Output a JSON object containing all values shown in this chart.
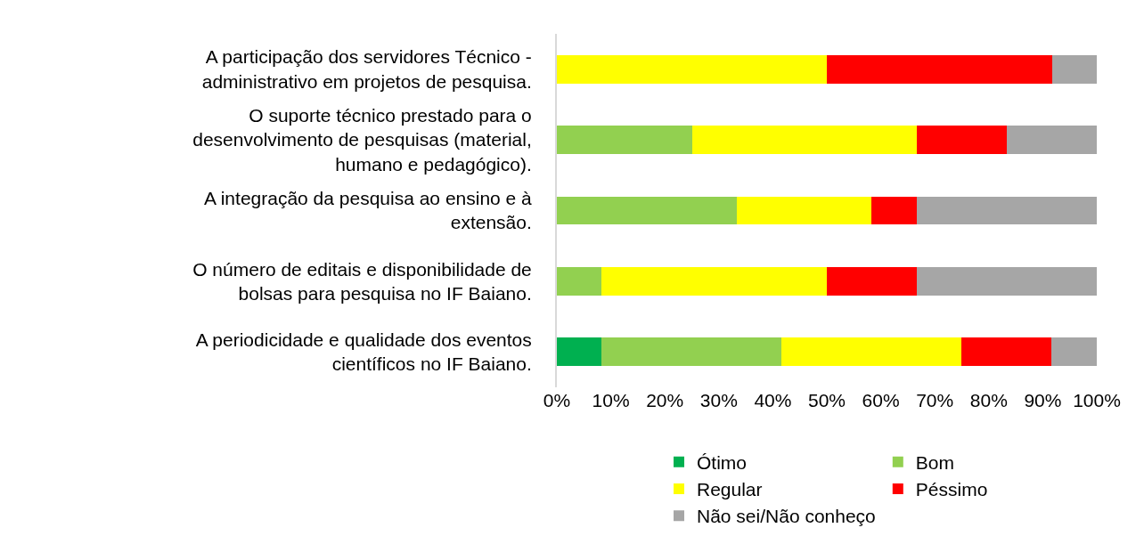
{
  "chart_data": {
    "type": "bar",
    "orientation": "horizontal",
    "stacked": true,
    "categories": [
      "A participação dos servidores Técnico - administrativo em projetos de pesquisa.",
      "O suporte técnico prestado para o desenvolvimento de pesquisas (material, humano e pedagógico).",
      "A integração da pesquisa ao ensino e à extensão.",
      "O número de editais e disponibilidade de bolsas para pesquisa no IF Baiano.",
      "A periodicidade e qualidade dos eventos científicos no IF Baiano."
    ],
    "series": [
      {
        "name": "Ótimo",
        "color": "#00b050",
        "values": [
          0,
          0,
          0,
          0,
          8.3
        ]
      },
      {
        "name": "Bom",
        "color": "#92d050",
        "values": [
          0,
          25,
          33.3,
          8.3,
          33.3
        ]
      },
      {
        "name": "Regular",
        "color": "#ffff00",
        "values": [
          50,
          41.7,
          25,
          41.7,
          33.3
        ]
      },
      {
        "name": "Péssimo",
        "color": "#ff0000",
        "values": [
          41.7,
          16.7,
          8.3,
          16.7,
          16.7
        ]
      },
      {
        "name": "Não sei/Não conheço",
        "color": "#a6a6a6",
        "values": [
          8.3,
          16.6,
          33.4,
          33.3,
          8.4
        ]
      }
    ],
    "xlim": [
      0,
      100
    ],
    "xticks": [
      {
        "value": 0,
        "label": "0%"
      },
      {
        "value": 10,
        "label": "10%"
      },
      {
        "value": 20,
        "label": "20%"
      },
      {
        "value": 30,
        "label": "30%"
      },
      {
        "value": 40,
        "label": "40%"
      },
      {
        "value": 50,
        "label": "50%"
      },
      {
        "value": 60,
        "label": "60%"
      },
      {
        "value": 70,
        "label": "70%"
      },
      {
        "value": 80,
        "label": "80%"
      },
      {
        "value": 90,
        "label": "90%"
      },
      {
        "value": 100,
        "label": "100%"
      }
    ],
    "grid": false,
    "legend": "bottom"
  }
}
